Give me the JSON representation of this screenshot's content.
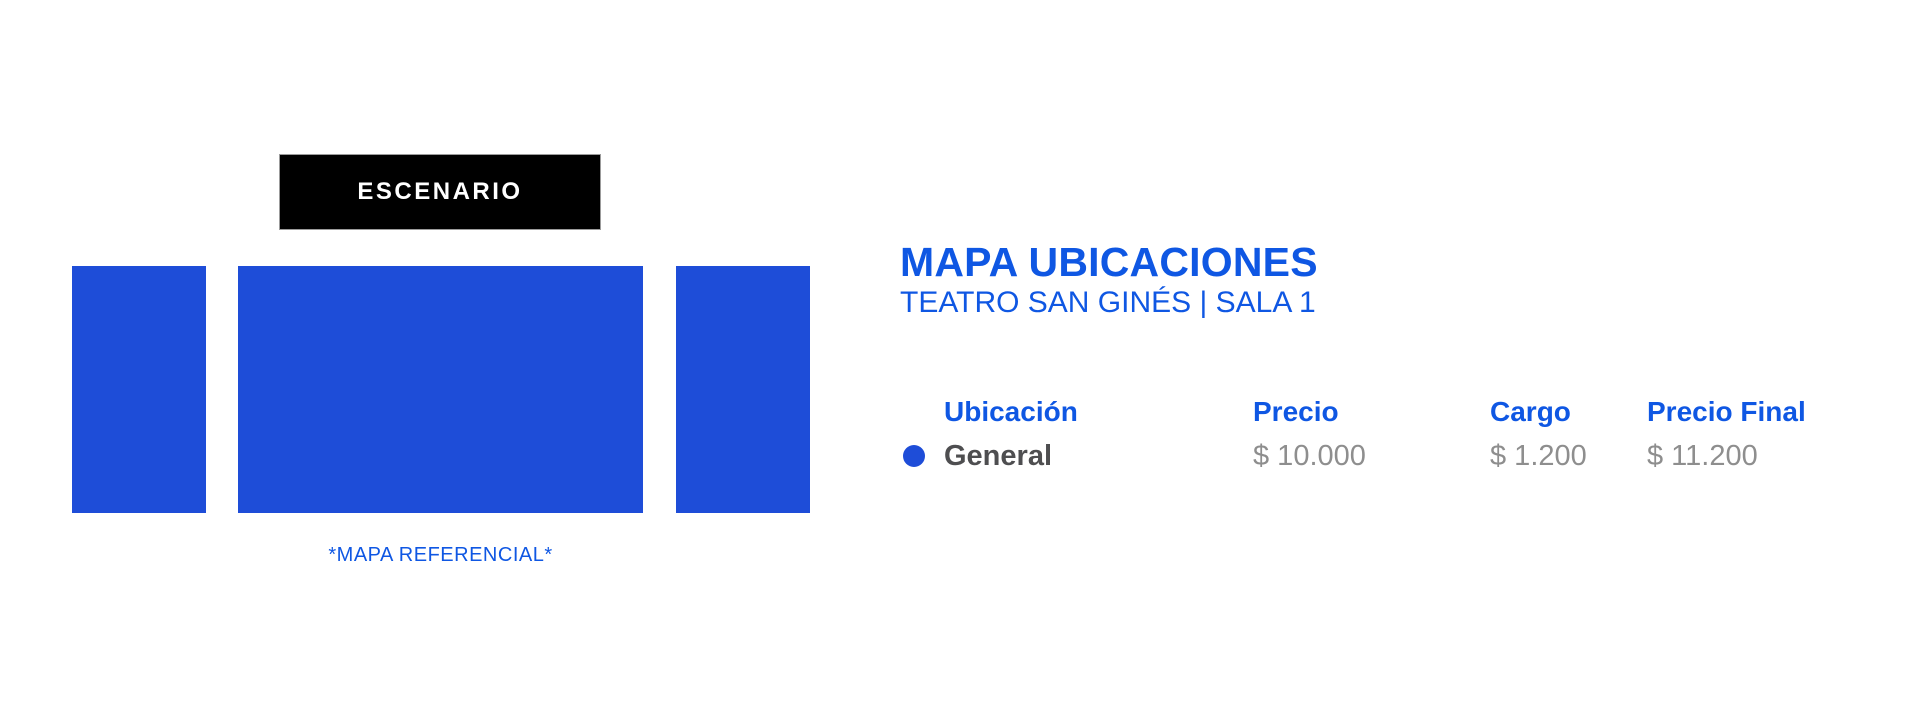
{
  "colors": {
    "brand_text_blue": "#0f57e3",
    "seat_block_blue": "#1e4dd8",
    "zone_dot_blue": "#1e4dd8",
    "stage_black": "#000000",
    "stage_text_white": "#ffffff",
    "price_gray": "#8e8e8e",
    "zone_name_gray": "#4e4e50"
  },
  "stage": {
    "label": "ESCENARIO"
  },
  "map": {
    "caption": "*MAPA REFERENCIAL*",
    "blocks": [
      {
        "name": "left-zone"
      },
      {
        "name": "center-zone"
      },
      {
        "name": "right-zone"
      }
    ]
  },
  "panel": {
    "title": "MAPA UBICACIONES",
    "subtitle": "TEATRO SAN GINÉS | SALA 1"
  },
  "pricing": {
    "columns": [
      "Ubicación",
      "Precio",
      "Cargo",
      "Precio Final"
    ],
    "rows": [
      {
        "ubicacion": "General",
        "precio": "$ 10.000",
        "cargo": "$ 1.200",
        "precio_final": "$ 11.200"
      }
    ]
  }
}
